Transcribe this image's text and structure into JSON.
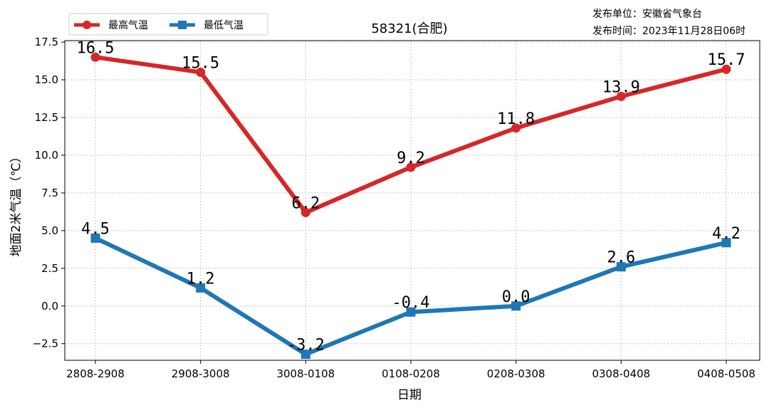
{
  "chart_data": {
    "type": "line",
    "title": "58321(合肥)",
    "xlabel": "日期",
    "ylabel": "地面2米气温（℃）",
    "categories": [
      "2808-2908",
      "2908-3008",
      "3008-0108",
      "0108-0208",
      "0208-0308",
      "0308-0408",
      "0408-0508"
    ],
    "ylim": [
      -3.6,
      17.6
    ],
    "yticks": [
      -2.5,
      0.0,
      2.5,
      5.0,
      7.5,
      10.0,
      12.5,
      15.0,
      17.5
    ],
    "grid": true,
    "legend_position": "top-left",
    "series": [
      {
        "name": "最高气温",
        "color": "#d62728",
        "marker": "circle",
        "values": [
          16.5,
          15.5,
          6.2,
          9.2,
          11.8,
          13.9,
          15.7
        ]
      },
      {
        "name": "最低气温",
        "color": "#1f77b4",
        "marker": "square",
        "values": [
          4.5,
          1.2,
          -3.2,
          -0.4,
          0.0,
          2.6,
          4.2
        ]
      }
    ]
  },
  "info": {
    "publisher": "发布单位：安徽省气象台",
    "publish_time": "发布时间：2023年11月28日06时"
  }
}
